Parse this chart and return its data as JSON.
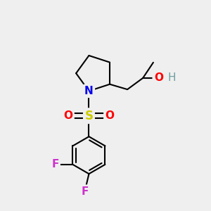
{
  "bg_color": "#efefef",
  "bond_color": "#000000",
  "bond_width": 1.5,
  "atom_labels": {
    "N": {
      "color": "#0000ee",
      "fontsize": 11
    },
    "S": {
      "color": "#cccc00",
      "fontsize": 12
    },
    "O": {
      "color": "#ff0000",
      "fontsize": 11
    },
    "H": {
      "color": "#6e9ea0",
      "fontsize": 11
    },
    "F": {
      "color": "#cc33cc",
      "fontsize": 11
    }
  },
  "layout": {
    "xlim": [
      0,
      10
    ],
    "ylim": [
      0,
      10
    ]
  }
}
